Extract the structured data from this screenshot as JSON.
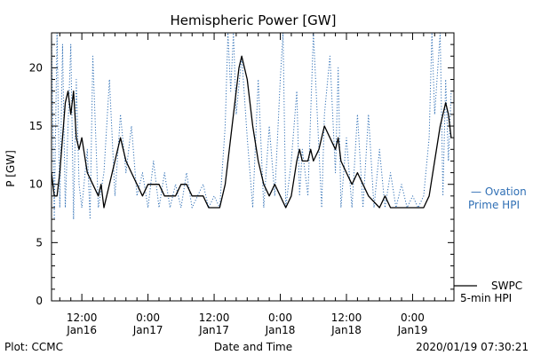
{
  "chart_data": {
    "type": "line",
    "title": "Hemispheric Power [GW]",
    "ylabel": "P [GW]",
    "xlabel": "Date and Time",
    "ylim": [
      0,
      23
    ],
    "xlim": [
      "2020-01-16 06:30",
      "2020-01-19 07:30"
    ],
    "y_ticks": [
      0,
      5,
      10,
      15,
      20
    ],
    "x_ticks": [
      {
        "time": "2020-01-16 12:00",
        "label1": "12:00",
        "label2": "Jan16"
      },
      {
        "time": "2020-01-17 00:00",
        "label1": "0:00",
        "label2": "Jan17"
      },
      {
        "time": "2020-01-17 12:00",
        "label1": "12:00",
        "label2": "Jan17"
      },
      {
        "time": "2020-01-18 00:00",
        "label1": "0:00",
        "label2": "Jan18"
      },
      {
        "time": "2020-01-18 12:00",
        "label1": "12:00",
        "label2": "Jan18"
      },
      {
        "time": "2020-01-19 00:00",
        "label1": "0:00",
        "label2": "Jan19"
      }
    ],
    "series": [
      {
        "name": "SWPC 5-min HPI",
        "legend_lines": [
          "SWPC",
          "5-min HPI"
        ],
        "style": "solid",
        "color": "#000000",
        "points": [
          [
            "2020-01-16 06:30",
            11
          ],
          [
            "2020-01-16 07:00",
            9
          ],
          [
            "2020-01-16 07:30",
            9
          ],
          [
            "2020-01-16 08:00",
            11
          ],
          [
            "2020-01-16 08:30",
            14
          ],
          [
            "2020-01-16 09:00",
            17
          ],
          [
            "2020-01-16 09:30",
            18
          ],
          [
            "2020-01-16 10:00",
            16
          ],
          [
            "2020-01-16 10:30",
            18
          ],
          [
            "2020-01-16 11:00",
            14
          ],
          [
            "2020-01-16 11:30",
            13
          ],
          [
            "2020-01-16 12:00",
            14
          ],
          [
            "2020-01-16 13:00",
            11
          ],
          [
            "2020-01-16 14:00",
            10
          ],
          [
            "2020-01-16 15:00",
            9
          ],
          [
            "2020-01-16 15:30",
            10
          ],
          [
            "2020-01-16 16:00",
            8
          ],
          [
            "2020-01-16 17:00",
            10
          ],
          [
            "2020-01-16 18:00",
            12
          ],
          [
            "2020-01-16 19:00",
            14
          ],
          [
            "2020-01-16 20:00",
            12
          ],
          [
            "2020-01-16 21:00",
            11
          ],
          [
            "2020-01-16 22:00",
            10
          ],
          [
            "2020-01-16 23:00",
            9
          ],
          [
            "2020-01-17 00:00",
            10
          ],
          [
            "2020-01-17 02:00",
            10
          ],
          [
            "2020-01-17 03:00",
            9
          ],
          [
            "2020-01-17 05:00",
            9
          ],
          [
            "2020-01-17 06:00",
            10
          ],
          [
            "2020-01-17 07:00",
            10
          ],
          [
            "2020-01-17 08:00",
            9
          ],
          [
            "2020-01-17 10:00",
            9
          ],
          [
            "2020-01-17 11:00",
            8
          ],
          [
            "2020-01-17 13:00",
            8
          ],
          [
            "2020-01-17 14:00",
            10
          ],
          [
            "2020-01-17 15:00",
            14
          ],
          [
            "2020-01-17 16:00",
            18
          ],
          [
            "2020-01-17 16:30",
            20
          ],
          [
            "2020-01-17 17:00",
            21
          ],
          [
            "2020-01-17 18:00",
            19
          ],
          [
            "2020-01-17 19:00",
            15
          ],
          [
            "2020-01-17 20:00",
            12
          ],
          [
            "2020-01-17 21:00",
            10
          ],
          [
            "2020-01-17 22:00",
            9
          ],
          [
            "2020-01-17 23:00",
            10
          ],
          [
            "2020-01-18 00:00",
            9
          ],
          [
            "2020-01-18 01:00",
            8
          ],
          [
            "2020-01-18 02:00",
            9
          ],
          [
            "2020-01-18 03:00",
            12
          ],
          [
            "2020-01-18 03:30",
            13
          ],
          [
            "2020-01-18 04:00",
            12
          ],
          [
            "2020-01-18 05:00",
            12
          ],
          [
            "2020-01-18 05:30",
            13
          ],
          [
            "2020-01-18 06:00",
            12
          ],
          [
            "2020-01-18 07:00",
            13
          ],
          [
            "2020-01-18 08:00",
            15
          ],
          [
            "2020-01-18 09:00",
            14
          ],
          [
            "2020-01-18 10:00",
            13
          ],
          [
            "2020-01-18 10:30",
            14
          ],
          [
            "2020-01-18 11:00",
            12
          ],
          [
            "2020-01-18 12:00",
            11
          ],
          [
            "2020-01-18 13:00",
            10
          ],
          [
            "2020-01-18 14:00",
            11
          ],
          [
            "2020-01-18 15:00",
            10
          ],
          [
            "2020-01-18 16:00",
            9
          ],
          [
            "2020-01-18 18:00",
            8
          ],
          [
            "2020-01-18 19:00",
            9
          ],
          [
            "2020-01-18 20:00",
            8
          ],
          [
            "2020-01-18 23:00",
            8
          ],
          [
            "2020-01-19 00:00",
            8
          ],
          [
            "2020-01-19 01:00",
            8
          ],
          [
            "2020-01-19 02:00",
            8
          ],
          [
            "2020-01-19 03:00",
            9
          ],
          [
            "2020-01-19 04:00",
            12
          ],
          [
            "2020-01-19 05:00",
            15
          ],
          [
            "2020-01-19 06:00",
            17
          ],
          [
            "2020-01-19 06:30",
            16
          ],
          [
            "2020-01-19 07:00",
            14
          ]
        ]
      },
      {
        "name": "Ovation Prime HPI",
        "legend_lines": [
          "— Ovation",
          "Prime HPI"
        ],
        "style": "dotted",
        "color": "#2f6fb5",
        "points": [
          [
            "2020-01-16 06:30",
            23
          ],
          [
            "2020-01-16 07:00",
            7
          ],
          [
            "2020-01-16 07:30",
            23
          ],
          [
            "2020-01-16 08:00",
            8
          ],
          [
            "2020-01-16 08:30",
            22
          ],
          [
            "2020-01-16 09:00",
            8
          ],
          [
            "2020-01-16 09:30",
            15
          ],
          [
            "2020-01-16 10:00",
            22
          ],
          [
            "2020-01-16 10:30",
            7
          ],
          [
            "2020-01-16 11:00",
            19
          ],
          [
            "2020-01-16 11:30",
            10
          ],
          [
            "2020-01-16 12:00",
            8
          ],
          [
            "2020-01-16 13:00",
            13
          ],
          [
            "2020-01-16 13:30",
            7
          ],
          [
            "2020-01-16 14:00",
            21
          ],
          [
            "2020-01-16 15:00",
            8
          ],
          [
            "2020-01-16 16:00",
            11
          ],
          [
            "2020-01-16 17:00",
            19
          ],
          [
            "2020-01-16 18:00",
            9
          ],
          [
            "2020-01-16 19:00",
            16
          ],
          [
            "2020-01-16 20:00",
            11
          ],
          [
            "2020-01-16 21:00",
            15
          ],
          [
            "2020-01-16 22:00",
            9
          ],
          [
            "2020-01-16 23:00",
            11
          ],
          [
            "2020-01-17 00:00",
            8
          ],
          [
            "2020-01-17 01:00",
            12
          ],
          [
            "2020-01-17 02:00",
            8
          ],
          [
            "2020-01-17 03:00",
            11
          ],
          [
            "2020-01-17 04:00",
            8
          ],
          [
            "2020-01-17 05:00",
            10
          ],
          [
            "2020-01-17 06:00",
            8
          ],
          [
            "2020-01-17 07:00",
            11
          ],
          [
            "2020-01-17 08:00",
            8
          ],
          [
            "2020-01-17 09:00",
            9
          ],
          [
            "2020-01-17 10:00",
            10
          ],
          [
            "2020-01-17 11:00",
            8
          ],
          [
            "2020-01-17 12:00",
            9
          ],
          [
            "2020-01-17 13:00",
            8
          ],
          [
            "2020-01-17 14:00",
            15
          ],
          [
            "2020-01-17 14:30",
            23
          ],
          [
            "2020-01-17 15:00",
            18
          ],
          [
            "2020-01-17 15:30",
            23
          ],
          [
            "2020-01-17 16:00",
            16
          ],
          [
            "2020-01-17 17:00",
            21
          ],
          [
            "2020-01-17 18:00",
            14
          ],
          [
            "2020-01-17 19:00",
            8
          ],
          [
            "2020-01-17 20:00",
            19
          ],
          [
            "2020-01-17 21:00",
            8
          ],
          [
            "2020-01-17 22:00",
            15
          ],
          [
            "2020-01-17 23:00",
            9
          ],
          [
            "2020-01-18 00:00",
            19
          ],
          [
            "2020-01-18 00:30",
            23
          ],
          [
            "2020-01-18 01:00",
            8
          ],
          [
            "2020-01-18 02:00",
            12
          ],
          [
            "2020-01-18 03:00",
            18
          ],
          [
            "2020-01-18 03:30",
            9
          ],
          [
            "2020-01-18 04:00",
            13
          ],
          [
            "2020-01-18 05:00",
            9
          ],
          [
            "2020-01-18 05:30",
            16
          ],
          [
            "2020-01-18 06:00",
            23
          ],
          [
            "2020-01-18 07:00",
            13
          ],
          [
            "2020-01-18 07:30",
            8
          ],
          [
            "2020-01-18 08:00",
            16
          ],
          [
            "2020-01-18 09:00",
            21
          ],
          [
            "2020-01-18 10:00",
            11
          ],
          [
            "2020-01-18 10:30",
            20
          ],
          [
            "2020-01-18 11:00",
            8
          ],
          [
            "2020-01-18 12:00",
            14
          ],
          [
            "2020-01-18 13:00",
            8
          ],
          [
            "2020-01-18 14:00",
            16
          ],
          [
            "2020-01-18 15:00",
            8
          ],
          [
            "2020-01-18 16:00",
            16
          ],
          [
            "2020-01-18 17:00",
            8
          ],
          [
            "2020-01-18 18:00",
            13
          ],
          [
            "2020-01-18 19:00",
            8
          ],
          [
            "2020-01-18 20:00",
            11
          ],
          [
            "2020-01-18 21:00",
            8
          ],
          [
            "2020-01-18 22:00",
            10
          ],
          [
            "2020-01-18 23:00",
            8
          ],
          [
            "2020-01-19 00:00",
            9
          ],
          [
            "2020-01-19 01:00",
            8
          ],
          [
            "2020-01-19 02:00",
            9
          ],
          [
            "2020-01-19 03:00",
            14
          ],
          [
            "2020-01-19 03:30",
            23
          ],
          [
            "2020-01-19 04:00",
            16
          ],
          [
            "2020-01-19 05:00",
            23
          ],
          [
            "2020-01-19 05:30",
            9
          ],
          [
            "2020-01-19 06:00",
            19
          ],
          [
            "2020-01-19 06:30",
            12
          ],
          [
            "2020-01-19 07:00",
            18
          ]
        ]
      }
    ],
    "legend_placement": "right",
    "grid": false
  },
  "footer": {
    "plot_credit": "Plot: CCMC",
    "timestamp": "2020/01/19 07:30:21"
  }
}
